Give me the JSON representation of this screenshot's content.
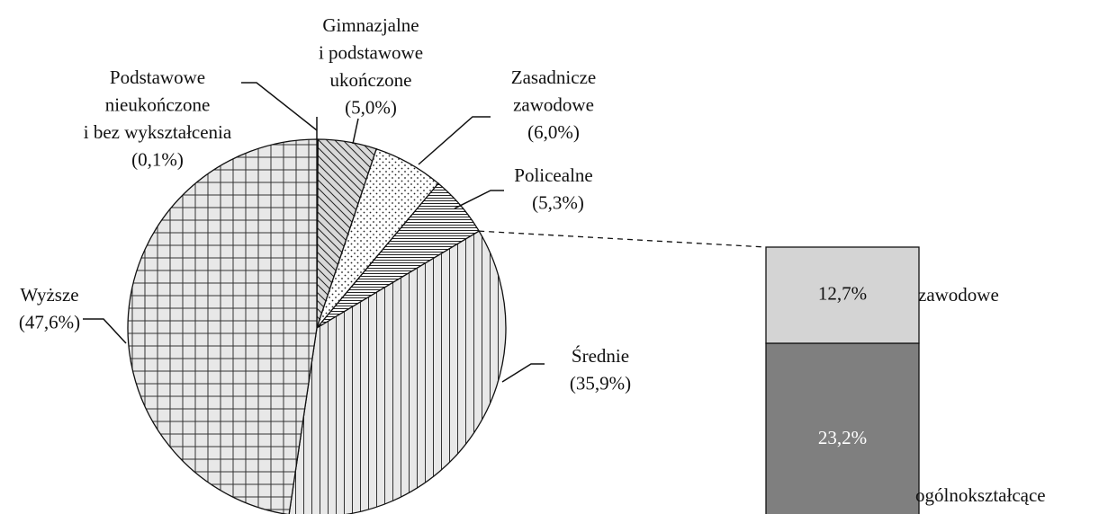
{
  "chart_data": {
    "type": "pie-of-bar",
    "categories": [
      [
        "Podstawowe",
        "nieukończone",
        "i bez wykształcenia"
      ],
      [
        "Gimnazjalne",
        "i podstawowe",
        "ukończone"
      ],
      [
        "Zasadnicze",
        "zawodowe"
      ],
      [
        "Policealne"
      ],
      [
        "Średnie"
      ],
      [
        "Wyższe"
      ]
    ],
    "values": [
      0.1,
      5.0,
      6.0,
      5.3,
      35.9,
      47.6
    ],
    "value_labels": [
      "(0,1%)",
      "(5,0%)",
      "(6,0%)",
      "(5,3%)",
      "(35,9%)",
      "(47,6%)"
    ],
    "patterns": [
      "none",
      "diagonal",
      "dots",
      "horizontal",
      "vertical",
      "grid"
    ],
    "bar": {
      "categories": [
        "zawodowe",
        "ogólnokształcące"
      ],
      "values": [
        12.7,
        23.2
      ],
      "value_labels": [
        "12,7%",
        "23,2%"
      ],
      "colors": [
        "#d4d4d4",
        "#7f7f7f"
      ]
    }
  }
}
